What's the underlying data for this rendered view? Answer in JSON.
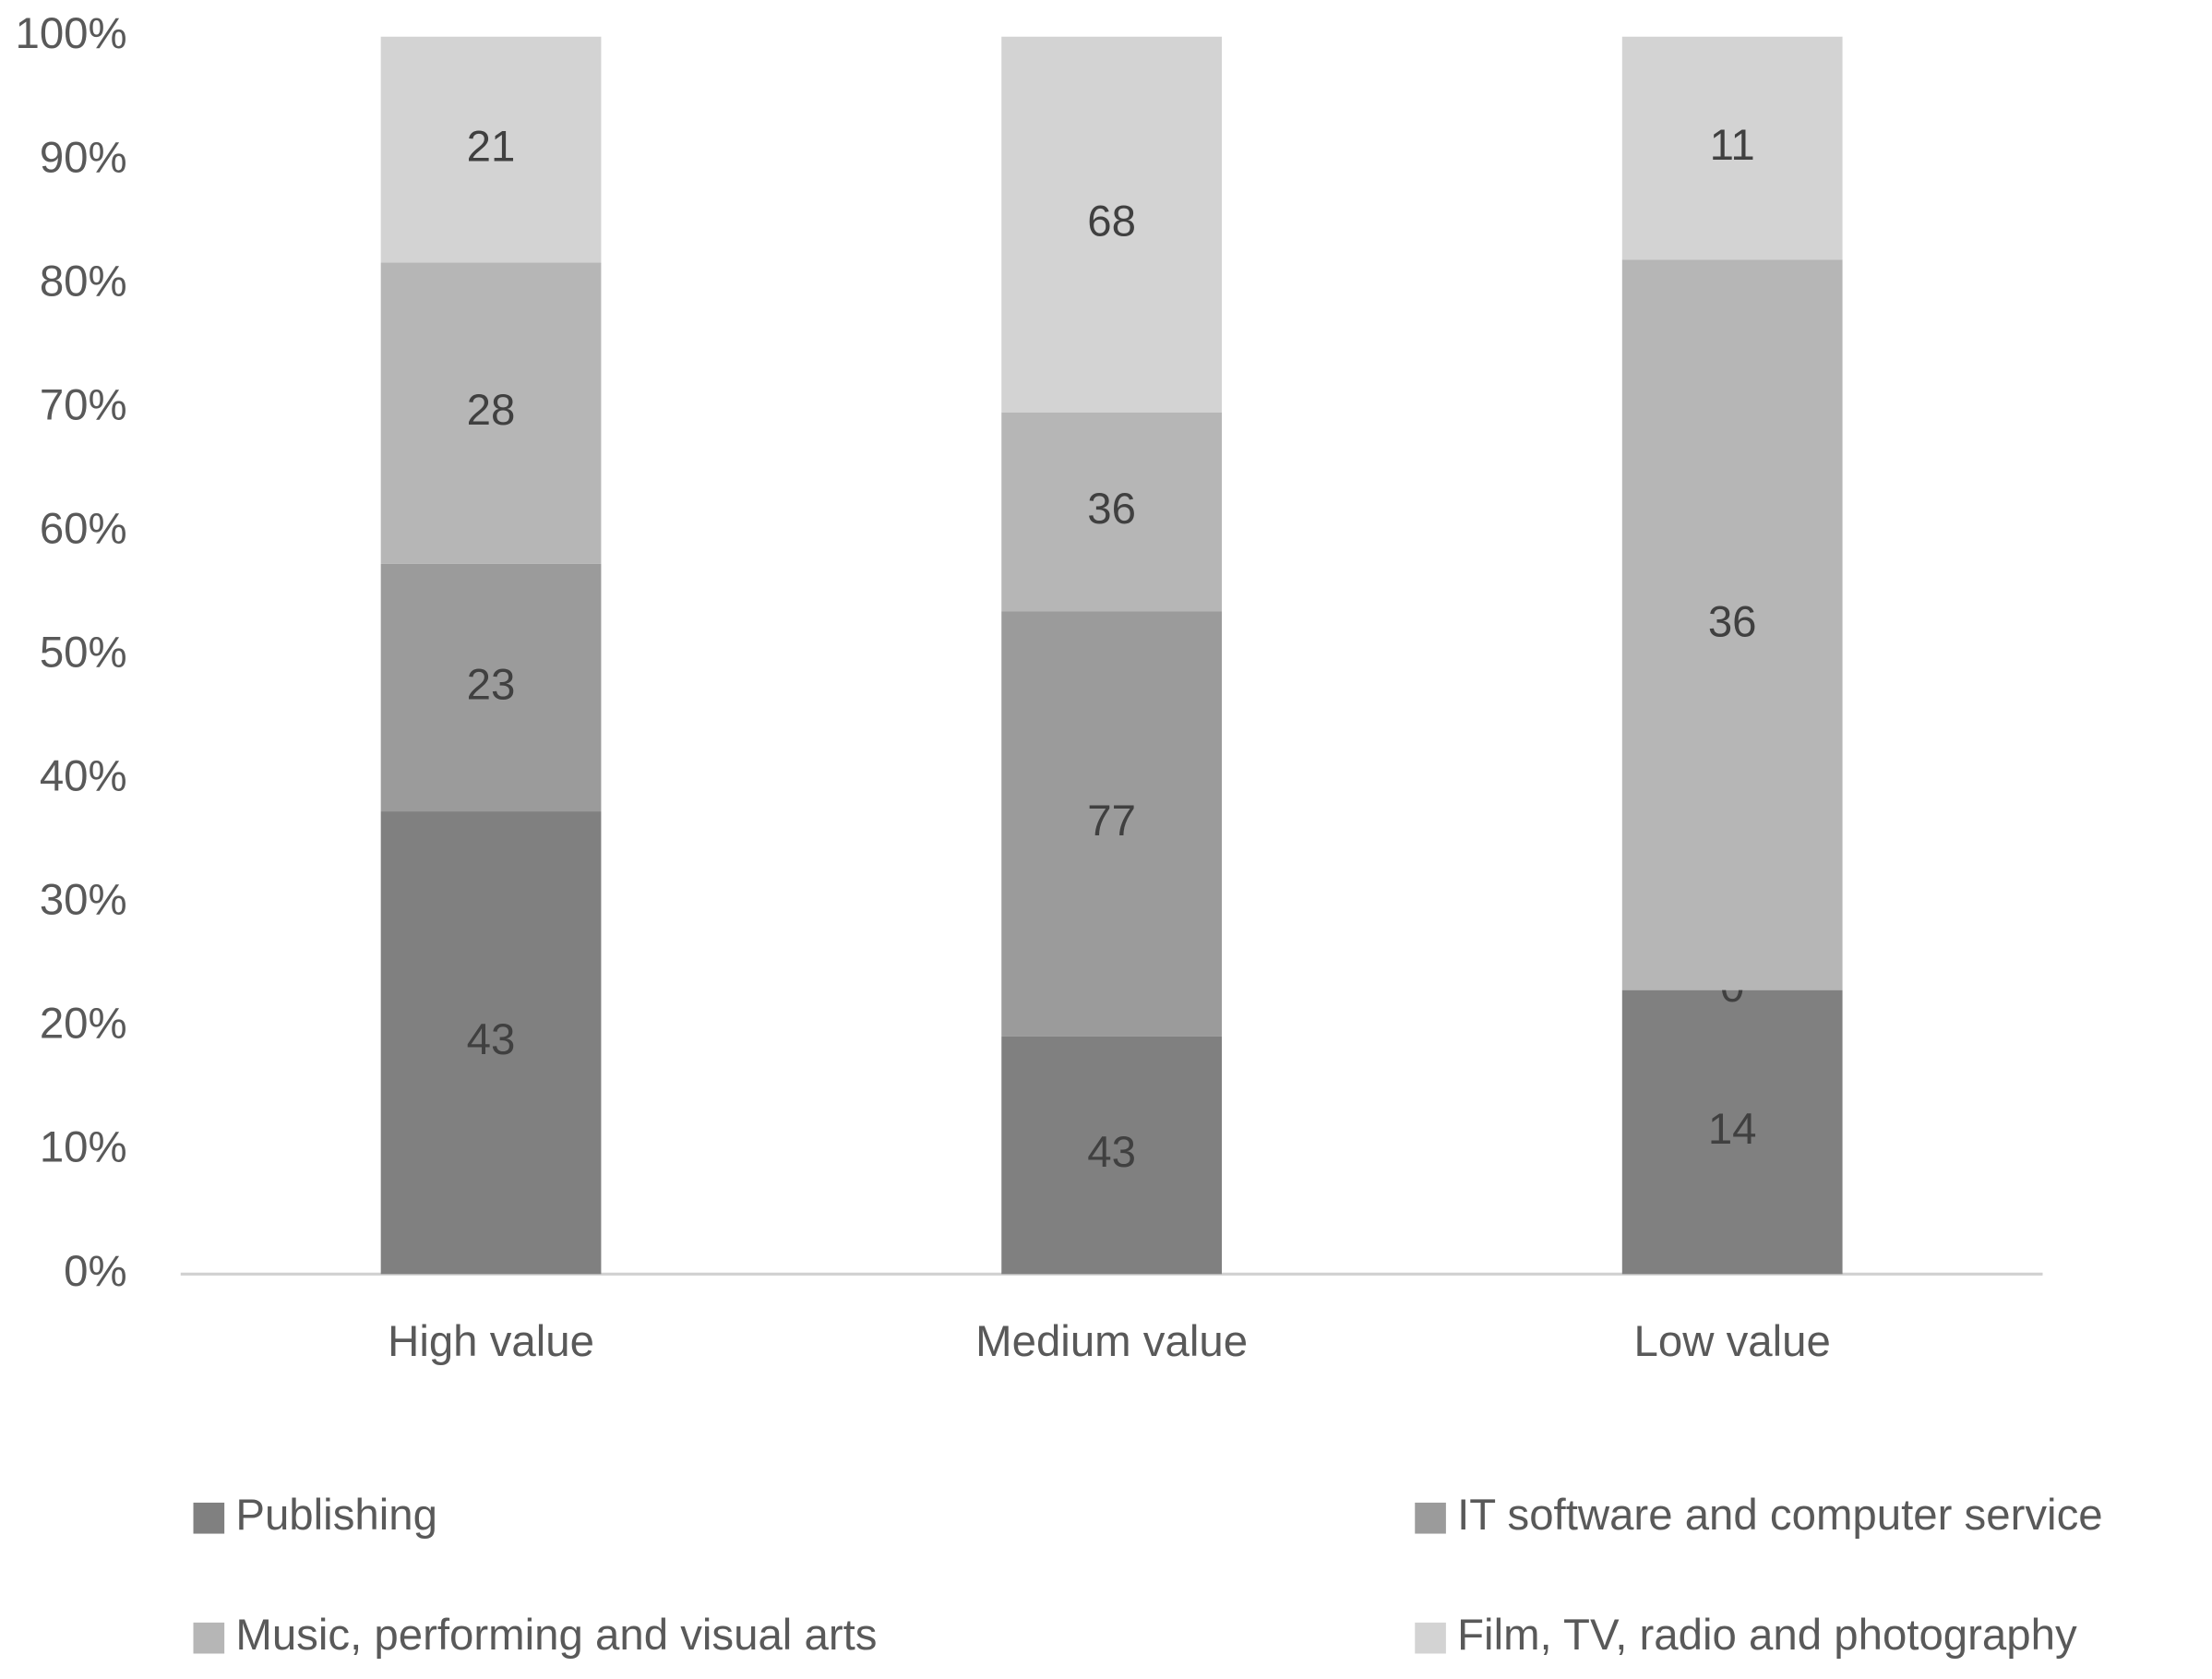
{
  "chart_data": {
    "type": "bar",
    "stacked": "percent",
    "categories": [
      "High value",
      "Medium value",
      "Low value"
    ],
    "series": [
      {
        "name": "Publishing",
        "color": "#808080",
        "values": [
          43,
          43,
          14
        ]
      },
      {
        "name": "IT software and computer service",
        "color": "#9b9b9b",
        "values": [
          23,
          77,
          0
        ]
      },
      {
        "name": "Music, performing and visual arts",
        "color": "#b6b6b6",
        "values": [
          28,
          36,
          36
        ]
      },
      {
        "name": "Film, TV, radio and photography",
        "color": "#d3d3d3",
        "values": [
          21,
          68,
          11
        ]
      }
    ],
    "ylim": [
      0,
      100
    ],
    "yticks": [
      {
        "value": 0,
        "label": "0%"
      },
      {
        "value": 10,
        "label": "10%"
      },
      {
        "value": 20,
        "label": "20%"
      },
      {
        "value": 30,
        "label": "30%"
      },
      {
        "value": 40,
        "label": "40%"
      },
      {
        "value": 50,
        "label": "50%"
      },
      {
        "value": 60,
        "label": "60%"
      },
      {
        "value": 70,
        "label": "70%"
      },
      {
        "value": 80,
        "label": "80%"
      },
      {
        "value": 90,
        "label": "90%"
      },
      {
        "value": 100,
        "label": "100%"
      }
    ],
    "grid": false,
    "legend": "bottom"
  }
}
